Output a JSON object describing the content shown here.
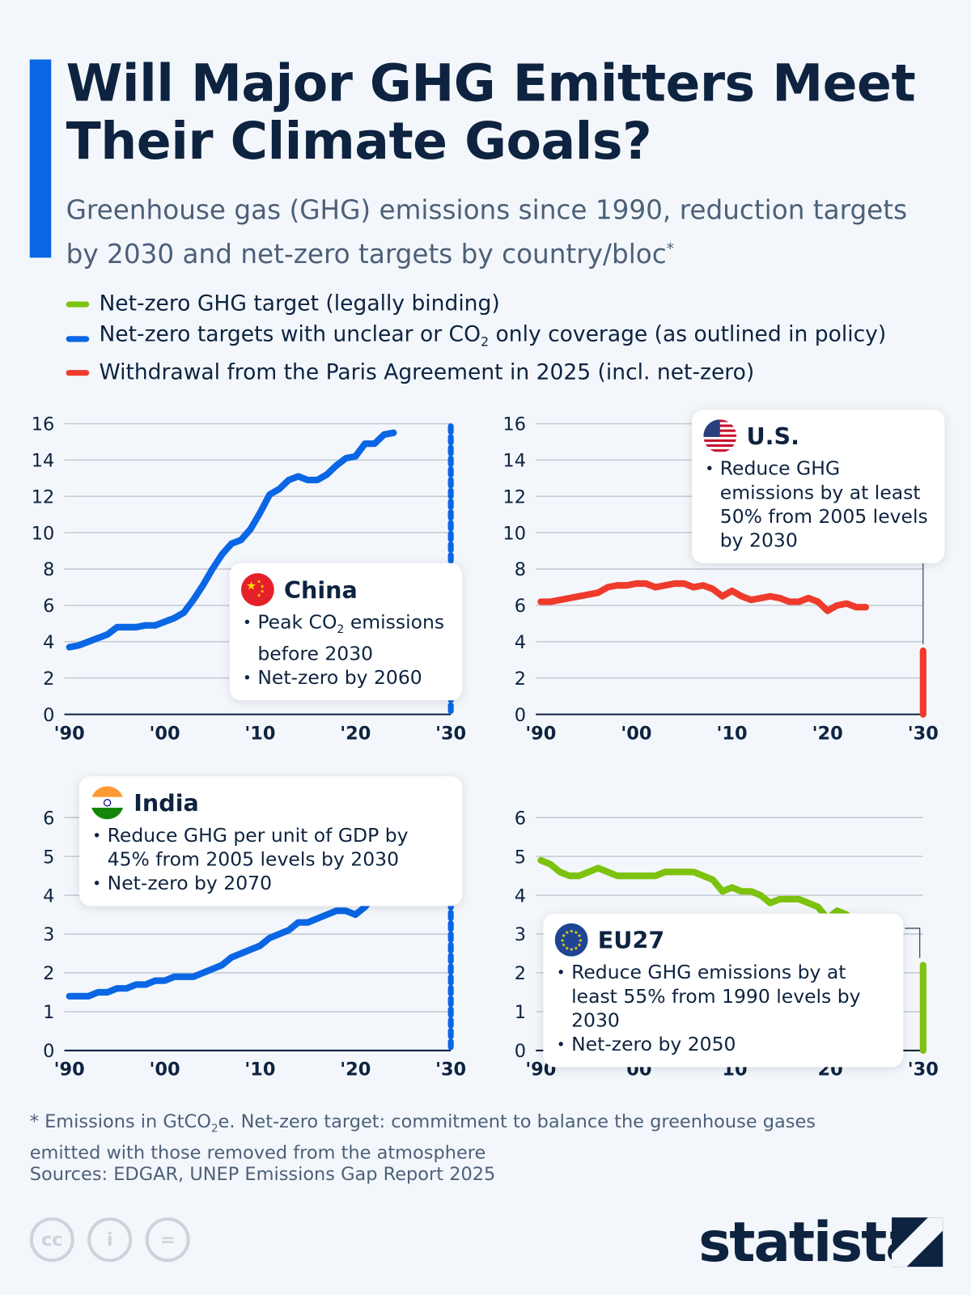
{
  "title": "Will Major GHG Emitters Meet Their Climate Goals?",
  "subtitle": "Greenhouse gas (GHG) emissions since 1990, reduction targets by 2030 and net-zero targets by country/bloc",
  "subtitle_mark": "*",
  "legend": [
    {
      "label": "Net-zero GHG target (legally binding)",
      "color": "#7dc20f"
    },
    {
      "label_pre": "Net-zero targets with unclear or CO",
      "label_sub": "2",
      "label_post": " only coverage (as outlined in policy)",
      "color": "#0a66e4"
    },
    {
      "label": "Withdrawal from the Paris Agreement in 2025 (incl. net-zero)",
      "color": "#ef3b2c"
    }
  ],
  "x_tick_labels": [
    "'90",
    "'00",
    "'10",
    "'20",
    "'30"
  ],
  "chart_data": [
    {
      "type": "line",
      "name": "China",
      "color": "#0a66e4",
      "target_style": "dotted",
      "ylim": [
        0,
        16
      ],
      "yticks": [
        0,
        2,
        4,
        6,
        8,
        10,
        12,
        14,
        16
      ],
      "xlim": [
        1990,
        2030
      ],
      "x": [
        1990,
        1991,
        1992,
        1993,
        1994,
        1995,
        1996,
        1997,
        1998,
        1999,
        2000,
        2001,
        2002,
        2003,
        2004,
        2005,
        2006,
        2007,
        2008,
        2009,
        2010,
        2011,
        2012,
        2013,
        2014,
        2015,
        2016,
        2017,
        2018,
        2019,
        2020,
        2021,
        2022,
        2023,
        2024
      ],
      "values": [
        3.7,
        3.8,
        4.0,
        4.2,
        4.4,
        4.8,
        4.8,
        4.8,
        4.9,
        4.9,
        5.1,
        5.3,
        5.6,
        6.3,
        7.1,
        8.0,
        8.8,
        9.4,
        9.6,
        10.2,
        11.1,
        12.1,
        12.4,
        12.9,
        13.1,
        12.9,
        12.9,
        13.2,
        13.7,
        14.1,
        14.2,
        14.9,
        14.9,
        15.4,
        15.5
      ],
      "target_2030": 16,
      "callout": {
        "title": "China",
        "bullets_html": [
          "Peak CO<sub>2</sub> emissions before 2030",
          "Net-zero by 2060"
        ]
      }
    },
    {
      "type": "line",
      "name": "U.S.",
      "color": "#ef3b2c",
      "target_style": "solid",
      "ylim": [
        0,
        16
      ],
      "yticks": [
        0,
        2,
        4,
        6,
        8,
        10,
        12,
        14,
        16
      ],
      "xlim": [
        1990,
        2030
      ],
      "x": [
        1990,
        1991,
        1992,
        1993,
        1994,
        1995,
        1996,
        1997,
        1998,
        1999,
        2000,
        2001,
        2002,
        2003,
        2004,
        2005,
        2006,
        2007,
        2008,
        2009,
        2010,
        2011,
        2012,
        2013,
        2014,
        2015,
        2016,
        2017,
        2018,
        2019,
        2020,
        2021,
        2022,
        2023,
        2024
      ],
      "values": [
        6.2,
        6.2,
        6.3,
        6.4,
        6.5,
        6.6,
        6.7,
        7.0,
        7.1,
        7.1,
        7.2,
        7.2,
        7.0,
        7.1,
        7.2,
        7.2,
        7.0,
        7.1,
        6.9,
        6.5,
        6.8,
        6.5,
        6.3,
        6.4,
        6.5,
        6.4,
        6.2,
        6.2,
        6.4,
        6.2,
        5.7,
        6.0,
        6.1,
        5.9,
        5.9
      ],
      "target_2030": 3.5,
      "callout": {
        "title": "U.S.",
        "bullets_html": [
          "Reduce GHG emissions by at least 50% from 2005 levels by 2030"
        ]
      }
    },
    {
      "type": "line",
      "name": "India",
      "color": "#0a66e4",
      "target_style": "dotted",
      "ylim": [
        0,
        6
      ],
      "yticks": [
        0,
        1,
        2,
        3,
        4,
        5,
        6
      ],
      "xlim": [
        1990,
        2030
      ],
      "x": [
        1990,
        1991,
        1992,
        1993,
        1994,
        1995,
        1996,
        1997,
        1998,
        1999,
        2000,
        2001,
        2002,
        2003,
        2004,
        2005,
        2006,
        2007,
        2008,
        2009,
        2010,
        2011,
        2012,
        2013,
        2014,
        2015,
        2016,
        2017,
        2018,
        2019,
        2020,
        2021,
        2022,
        2023,
        2024
      ],
      "values": [
        1.4,
        1.4,
        1.4,
        1.5,
        1.5,
        1.6,
        1.6,
        1.7,
        1.7,
        1.8,
        1.8,
        1.9,
        1.9,
        1.9,
        2.0,
        2.1,
        2.2,
        2.4,
        2.5,
        2.6,
        2.7,
        2.9,
        3.0,
        3.1,
        3.3,
        3.3,
        3.4,
        3.5,
        3.6,
        3.6,
        3.5,
        3.7,
        4.0,
        4.2,
        4.4
      ],
      "target_2030": 6,
      "callout": {
        "title": "India",
        "bullets_html": [
          "Reduce GHG per unit of GDP by 45% from 2005 levels by 2030",
          "Net-zero by 2070"
        ]
      }
    },
    {
      "type": "line",
      "name": "EU27",
      "color": "#7dc20f",
      "target_style": "solid",
      "ylim": [
        0,
        6
      ],
      "yticks": [
        0,
        1,
        2,
        3,
        4,
        5,
        6
      ],
      "xlim": [
        1990,
        2030
      ],
      "x": [
        1990,
        1991,
        1992,
        1993,
        1994,
        1995,
        1996,
        1997,
        1998,
        1999,
        2000,
        2001,
        2002,
        2003,
        2004,
        2005,
        2006,
        2007,
        2008,
        2009,
        2010,
        2011,
        2012,
        2013,
        2014,
        2015,
        2016,
        2017,
        2018,
        2019,
        2020,
        2021,
        2022,
        2023,
        2024
      ],
      "values": [
        4.9,
        4.8,
        4.6,
        4.5,
        4.5,
        4.6,
        4.7,
        4.6,
        4.5,
        4.5,
        4.5,
        4.5,
        4.5,
        4.6,
        4.6,
        4.6,
        4.6,
        4.5,
        4.4,
        4.1,
        4.2,
        4.1,
        4.1,
        4.0,
        3.8,
        3.9,
        3.9,
        3.9,
        3.8,
        3.7,
        3.4,
        3.6,
        3.5,
        3.2,
        3.2
      ],
      "target_2030": 2.2,
      "callout": {
        "title": "EU27",
        "bullets_html": [
          "Reduce GHG emissions by at least 55% from 1990 levels by 2030",
          "Net-zero by 2050"
        ]
      }
    }
  ],
  "footnote_pre": "* Emissions in GtCO",
  "footnote_sub": "2",
  "footnote_post": "e. Net-zero target: commitment to balance the greenhouse gases emitted with those removed from the atmosphere",
  "sources": "Sources: EDGAR, UNEP Emissions Gap Report 2025",
  "license_icons": [
    "cc-icon",
    "attribution-icon",
    "no-derivatives-icon"
  ],
  "brand": "statista"
}
